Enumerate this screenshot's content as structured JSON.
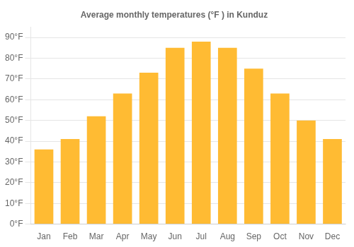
{
  "chart_data": {
    "type": "bar",
    "title": "Average monthly temperatures (°F ) in Kunduz",
    "categories": [
      "Jan",
      "Feb",
      "Mar",
      "Apr",
      "May",
      "Jun",
      "Jul",
      "Aug",
      "Sep",
      "Oct",
      "Nov",
      "Dec"
    ],
    "values": [
      36,
      41,
      52,
      63,
      73,
      85,
      88,
      85,
      75,
      63,
      50,
      41
    ],
    "color": "#FFBB33",
    "ylim": [
      0,
      95
    ],
    "yticks": [
      {
        "value": 0,
        "label": "0°F"
      },
      {
        "value": 10,
        "label": "10°F"
      },
      {
        "value": 20,
        "label": "20°F"
      },
      {
        "value": 30,
        "label": "30°F"
      },
      {
        "value": 40,
        "label": "40°F"
      },
      {
        "value": 50,
        "label": "50°F"
      },
      {
        "value": 60,
        "label": "60°F"
      },
      {
        "value": 70,
        "label": "70°F"
      },
      {
        "value": 80,
        "label": "80°F"
      },
      {
        "value": 90,
        "label": "90°F"
      }
    ],
    "grid": true
  }
}
